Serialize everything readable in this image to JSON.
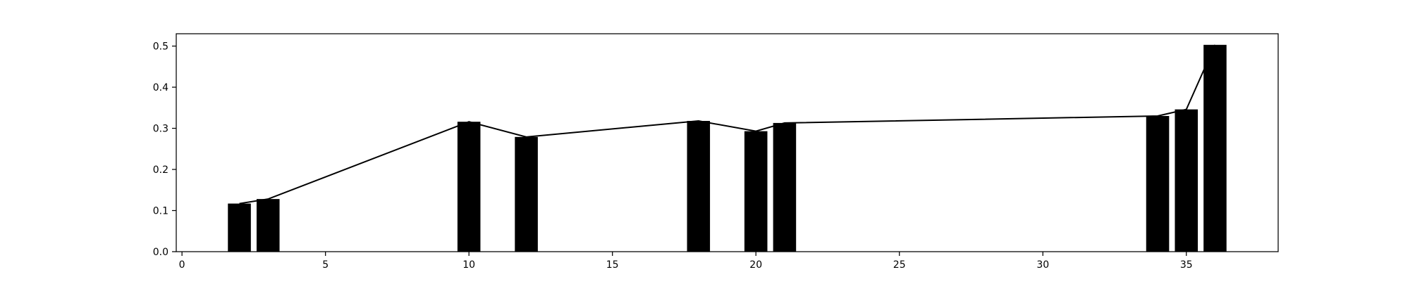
{
  "chart_data": {
    "type": "bar",
    "x": [
      2,
      3,
      10,
      12,
      18,
      20,
      21,
      34,
      35,
      36
    ],
    "values": [
      0.117,
      0.128,
      0.316,
      0.279,
      0.318,
      0.293,
      0.313,
      0.33,
      0.346,
      0.503
    ],
    "line_values": [
      0.117,
      0.128,
      0.316,
      0.279,
      0.318,
      0.293,
      0.313,
      0.33,
      0.346,
      0.503
    ],
    "xlim": [
      -0.2,
      38.2
    ],
    "ylim": [
      0,
      0.53
    ],
    "xticks": [
      0,
      5,
      10,
      15,
      20,
      25,
      30,
      35
    ],
    "yticks": [
      0.0,
      0.1,
      0.2,
      0.3,
      0.4,
      0.5
    ],
    "xtick_labels": [
      "0",
      "5",
      "10",
      "15",
      "20",
      "25",
      "30",
      "35"
    ],
    "ytick_labels": [
      "0.0",
      "0.1",
      "0.2",
      "0.3",
      "0.4",
      "0.5"
    ],
    "bar_width": 0.8,
    "grid": false,
    "colors": {
      "bar": "#000000",
      "line": "#000000",
      "axis": "#000000"
    }
  }
}
